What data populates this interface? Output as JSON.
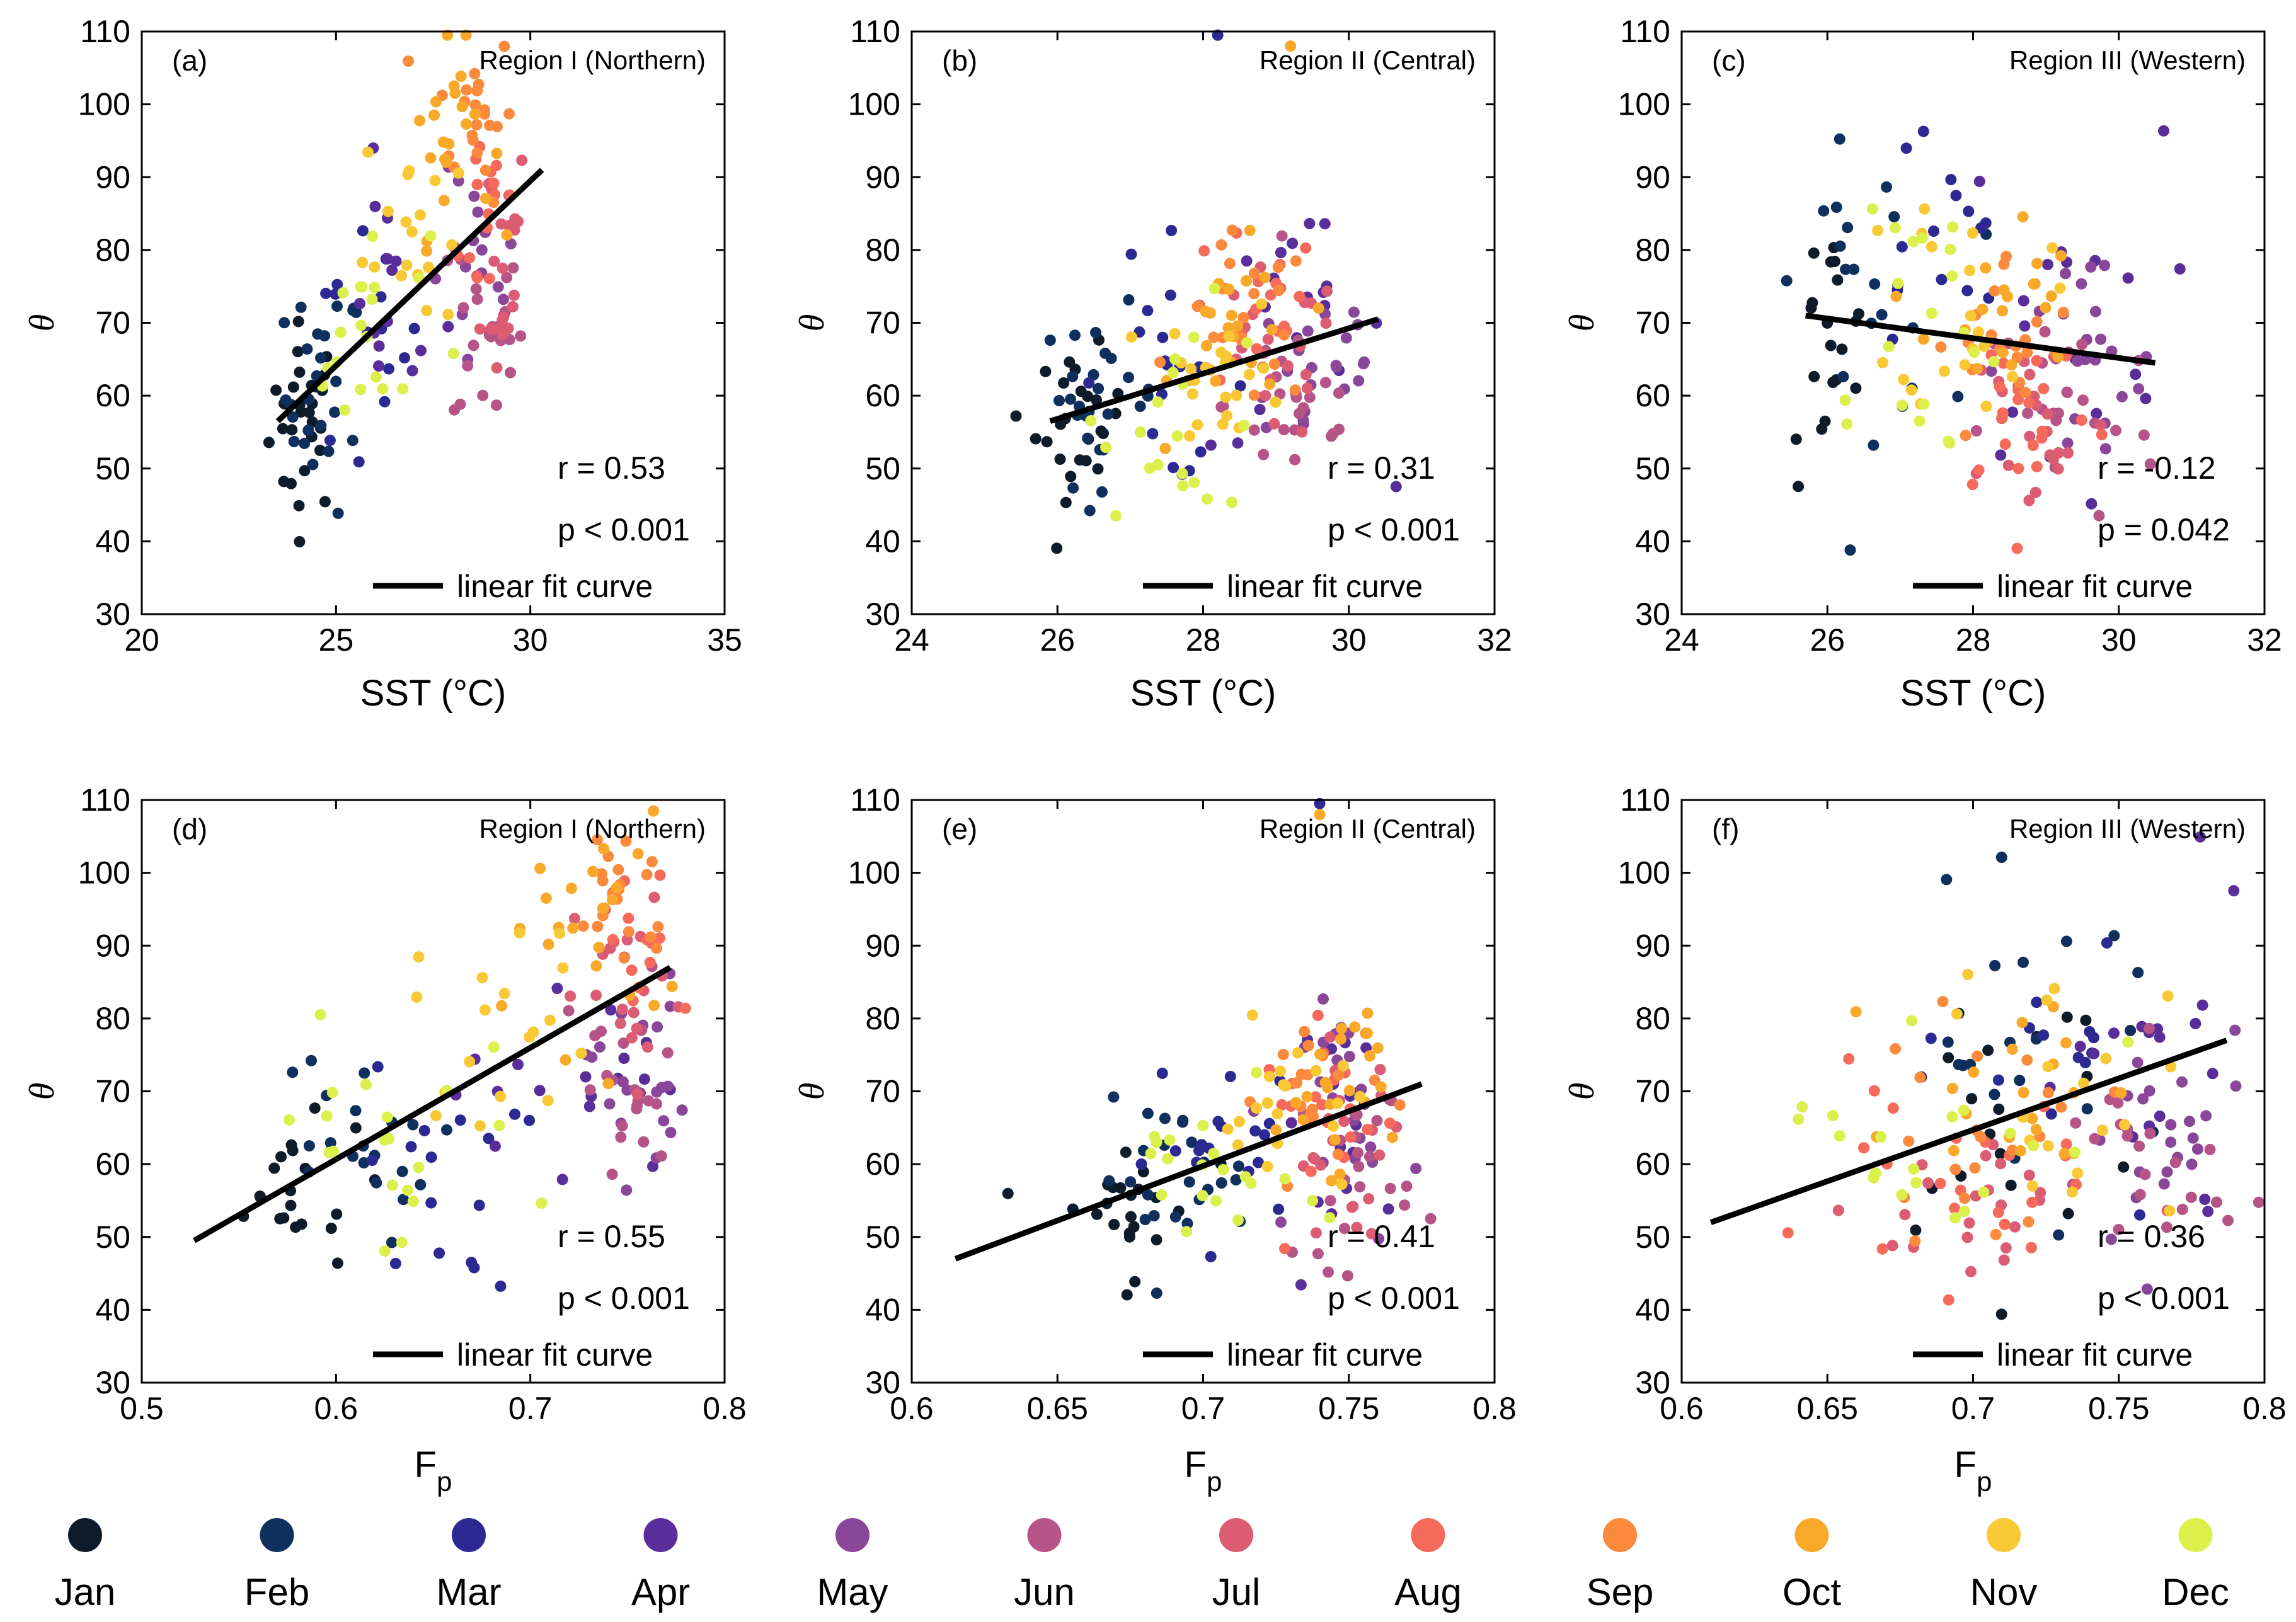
{
  "months": [
    {
      "label": "Jan",
      "color": "#0d1b2a"
    },
    {
      "label": "Feb",
      "color": "#0f2f5e"
    },
    {
      "label": "Mar",
      "color": "#2c2a92"
    },
    {
      "label": "Apr",
      "color": "#5a2e9a"
    },
    {
      "label": "May",
      "color": "#8a4799"
    },
    {
      "label": "Jun",
      "color": "#b65487"
    },
    {
      "label": "Jul",
      "color": "#dc5c73"
    },
    {
      "label": "Aug",
      "color": "#f66a5b"
    },
    {
      "label": "Sep",
      "color": "#fb8a3c"
    },
    {
      "label": "Oct",
      "color": "#f9a92a"
    },
    {
      "label": "Nov",
      "color": "#f9c935"
    },
    {
      "label": "Dec",
      "color": "#dbf04a"
    }
  ],
  "fit_label": "linear fit curve",
  "chart_data": [
    {
      "id": "a",
      "type": "scatter",
      "panel_label": "(a)",
      "title": "Region I (Northern)",
      "xlabel": "SST (°C)",
      "ylabel": "θ",
      "xlim": [
        20,
        35
      ],
      "ylim": [
        30,
        110
      ],
      "xticks": [
        "20",
        "25",
        "30",
        "35"
      ],
      "yticks": [
        "30",
        "40",
        "50",
        "60",
        "70",
        "80",
        "90",
        "100",
        "110"
      ],
      "r": "r = 0.53",
      "p": "p < 0.001",
      "fit": [
        [
          23.5,
          56.5
        ],
        [
          30.3,
          91
        ]
      ],
      "clusters": [
        {
          "m": 0,
          "n": 30,
          "cx": 24.2,
          "cy": 57,
          "sx": 0.45,
          "sy": 6.5
        },
        {
          "m": 1,
          "n": 26,
          "cx": 24.7,
          "cy": 60,
          "sx": 0.5,
          "sy": 8
        },
        {
          "m": 2,
          "n": 14,
          "cx": 25.6,
          "cy": 66,
          "sx": 0.8,
          "sy": 10
        },
        {
          "m": 3,
          "n": 14,
          "cx": 26.4,
          "cy": 74,
          "sx": 0.7,
          "sy": 8
        },
        {
          "m": 4,
          "n": 18,
          "cx": 28.6,
          "cy": 74,
          "sx": 0.6,
          "sy": 8
        },
        {
          "m": 5,
          "n": 22,
          "cx": 28.9,
          "cy": 70,
          "sx": 0.45,
          "sy": 8
        },
        {
          "m": 6,
          "n": 22,
          "cx": 29.1,
          "cy": 79,
          "sx": 0.45,
          "sy": 9
        },
        {
          "m": 7,
          "n": 14,
          "cx": 29.0,
          "cy": 86,
          "sx": 0.4,
          "sy": 8
        },
        {
          "m": 8,
          "n": 22,
          "cx": 28.6,
          "cy": 99,
          "sx": 0.5,
          "sy": 6
        },
        {
          "m": 9,
          "n": 22,
          "cx": 27.9,
          "cy": 96,
          "sx": 0.55,
          "sy": 7
        },
        {
          "m": 10,
          "n": 18,
          "cx": 26.9,
          "cy": 84,
          "sx": 0.6,
          "sy": 8
        },
        {
          "m": 11,
          "n": 20,
          "cx": 25.8,
          "cy": 68,
          "sx": 0.8,
          "sy": 8
        }
      ]
    },
    {
      "id": "b",
      "type": "scatter",
      "panel_label": "(b)",
      "title": "Region II (Central)",
      "xlabel": "SST (°C)",
      "ylabel": "θ",
      "xlim": [
        24,
        32
      ],
      "ylim": [
        30,
        110
      ],
      "xticks": [
        "24",
        "26",
        "28",
        "30",
        "32"
      ],
      "yticks": [
        "30",
        "40",
        "50",
        "60",
        "70",
        "80",
        "90",
        "100",
        "110"
      ],
      "r": "r = 0.31",
      "p": "p < 0.001",
      "fit": [
        [
          25.9,
          56.5
        ],
        [
          30.4,
          70.5
        ]
      ],
      "clusters": [
        {
          "m": 0,
          "n": 26,
          "cx": 26.3,
          "cy": 56,
          "sx": 0.3,
          "sy": 5
        },
        {
          "m": 1,
          "n": 26,
          "cx": 26.6,
          "cy": 60,
          "sx": 0.4,
          "sy": 6
        },
        {
          "m": 2,
          "n": 18,
          "cx": 27.4,
          "cy": 64,
          "sx": 0.6,
          "sy": 8
        },
        {
          "m": 3,
          "n": 18,
          "cx": 29.3,
          "cy": 68,
          "sx": 0.6,
          "sy": 8
        },
        {
          "m": 4,
          "n": 22,
          "cx": 29.6,
          "cy": 64,
          "sx": 0.5,
          "sy": 7
        },
        {
          "m": 5,
          "n": 22,
          "cx": 29.3,
          "cy": 59,
          "sx": 0.5,
          "sy": 7
        },
        {
          "m": 6,
          "n": 22,
          "cx": 28.9,
          "cy": 65,
          "sx": 0.5,
          "sy": 6
        },
        {
          "m": 7,
          "n": 18,
          "cx": 28.7,
          "cy": 71,
          "sx": 0.5,
          "sy": 6
        },
        {
          "m": 8,
          "n": 20,
          "cx": 28.6,
          "cy": 70,
          "sx": 0.45,
          "sy": 6
        },
        {
          "m": 9,
          "n": 22,
          "cx": 28.5,
          "cy": 68,
          "sx": 0.45,
          "sy": 6
        },
        {
          "m": 10,
          "n": 22,
          "cx": 28.3,
          "cy": 63,
          "sx": 0.45,
          "sy": 5
        },
        {
          "m": 11,
          "n": 20,
          "cx": 27.8,
          "cy": 58,
          "sx": 0.6,
          "sy": 7
        }
      ],
      "extra": [
        {
          "m": 2,
          "x": 28.2,
          "y": 109.5
        },
        {
          "m": 9,
          "x": 29.2,
          "y": 108
        }
      ]
    },
    {
      "id": "c",
      "type": "scatter",
      "panel_label": "(c)",
      "title": "Region III (Western)",
      "xlabel": "SST (°C)",
      "ylabel": "θ",
      "xlim": [
        24,
        32
      ],
      "ylim": [
        30,
        110
      ],
      "xticks": [
        "24",
        "26",
        "28",
        "30",
        "32"
      ],
      "yticks": [
        "30",
        "40",
        "50",
        "60",
        "70",
        "80",
        "90",
        "100",
        "110"
      ],
      "r": "r = -0.12",
      "p": "p = 0.042",
      "fit": [
        [
          25.7,
          71
        ],
        [
          30.5,
          64.5
        ]
      ],
      "clusters": [
        {
          "m": 0,
          "n": 20,
          "cx": 26.0,
          "cy": 66,
          "sx": 0.3,
          "sy": 9
        },
        {
          "m": 1,
          "n": 22,
          "cx": 26.6,
          "cy": 75,
          "sx": 0.5,
          "sy": 9
        },
        {
          "m": 2,
          "n": 14,
          "cx": 27.4,
          "cy": 79,
          "sx": 0.6,
          "sy": 10
        },
        {
          "m": 3,
          "n": 18,
          "cx": 29.2,
          "cy": 72,
          "sx": 0.7,
          "sy": 12
        },
        {
          "m": 4,
          "n": 22,
          "cx": 29.5,
          "cy": 63,
          "sx": 0.6,
          "sy": 9
        },
        {
          "m": 5,
          "n": 22,
          "cx": 29.3,
          "cy": 58,
          "sx": 0.6,
          "sy": 8
        },
        {
          "m": 6,
          "n": 24,
          "cx": 28.9,
          "cy": 56,
          "sx": 0.5,
          "sy": 7
        },
        {
          "m": 7,
          "n": 22,
          "cx": 28.7,
          "cy": 59,
          "sx": 0.5,
          "sy": 7
        },
        {
          "m": 8,
          "n": 20,
          "cx": 28.5,
          "cy": 66,
          "sx": 0.5,
          "sy": 7
        },
        {
          "m": 9,
          "n": 20,
          "cx": 28.4,
          "cy": 72,
          "sx": 0.5,
          "sy": 7
        },
        {
          "m": 10,
          "n": 20,
          "cx": 28.0,
          "cy": 74,
          "sx": 0.5,
          "sy": 8
        },
        {
          "m": 11,
          "n": 20,
          "cx": 27.0,
          "cy": 70,
          "sx": 0.7,
          "sy": 12
        }
      ]
    },
    {
      "id": "d",
      "type": "scatter",
      "panel_label": "(d)",
      "title": "Region I (Northern)",
      "xlabel": "F",
      "xlabel_sub": "p",
      "ylabel": "θ",
      "xlim": [
        0.5,
        0.8
      ],
      "ylim": [
        30,
        110
      ],
      "xticks": [
        "0.5",
        "0.6",
        "0.7",
        "0.8"
      ],
      "yticks": [
        "30",
        "40",
        "50",
        "60",
        "70",
        "80",
        "90",
        "100",
        "110"
      ],
      "r": "r = 0.55",
      "p": "p < 0.001",
      "fit": [
        [
          0.527,
          49.5
        ],
        [
          0.772,
          87
        ]
      ],
      "clusters": [
        {
          "m": 0,
          "n": 20,
          "cx": 0.575,
          "cy": 56,
          "sx": 0.022,
          "sy": 5
        },
        {
          "m": 1,
          "n": 22,
          "cx": 0.605,
          "cy": 62,
          "sx": 0.022,
          "sy": 7
        },
        {
          "m": 2,
          "n": 16,
          "cx": 0.655,
          "cy": 58,
          "sx": 0.02,
          "sy": 8
        },
        {
          "m": 3,
          "n": 18,
          "cx": 0.72,
          "cy": 70,
          "sx": 0.03,
          "sy": 8
        },
        {
          "m": 4,
          "n": 22,
          "cx": 0.755,
          "cy": 72,
          "sx": 0.012,
          "sy": 7
        },
        {
          "m": 5,
          "n": 22,
          "cx": 0.75,
          "cy": 70,
          "sx": 0.015,
          "sy": 8
        },
        {
          "m": 6,
          "n": 22,
          "cx": 0.752,
          "cy": 82,
          "sx": 0.014,
          "sy": 8
        },
        {
          "m": 7,
          "n": 12,
          "cx": 0.757,
          "cy": 88,
          "sx": 0.01,
          "sy": 7
        },
        {
          "m": 8,
          "n": 22,
          "cx": 0.748,
          "cy": 98,
          "sx": 0.013,
          "sy": 6
        },
        {
          "m": 9,
          "n": 22,
          "cx": 0.73,
          "cy": 92,
          "sx": 0.02,
          "sy": 8
        },
        {
          "m": 10,
          "n": 18,
          "cx": 0.69,
          "cy": 80,
          "sx": 0.025,
          "sy": 7
        },
        {
          "m": 11,
          "n": 20,
          "cx": 0.62,
          "cy": 63,
          "sx": 0.04,
          "sy": 8
        }
      ]
    },
    {
      "id": "e",
      "type": "scatter",
      "panel_label": "(e)",
      "title": "Region II (Central)",
      "xlabel": "F",
      "xlabel_sub": "p",
      "ylabel": "θ",
      "xlim": [
        0.6,
        0.8
      ],
      "ylim": [
        30,
        110
      ],
      "xticks": [
        "0.6",
        "0.65",
        "0.7",
        "0.75",
        "0.8"
      ],
      "yticks": [
        "30",
        "40",
        "50",
        "60",
        "70",
        "80",
        "90",
        "100",
        "110"
      ],
      "r": "r = 0.41",
      "p": "p < 0.001",
      "fit": [
        [
          0.615,
          47
        ],
        [
          0.775,
          71
        ]
      ],
      "clusters": [
        {
          "m": 0,
          "n": 22,
          "cx": 0.672,
          "cy": 54,
          "sx": 0.013,
          "sy": 5
        },
        {
          "m": 1,
          "n": 24,
          "cx": 0.69,
          "cy": 58,
          "sx": 0.013,
          "sy": 5
        },
        {
          "m": 2,
          "n": 18,
          "cx": 0.71,
          "cy": 63,
          "sx": 0.014,
          "sy": 6
        },
        {
          "m": 3,
          "n": 18,
          "cx": 0.75,
          "cy": 66,
          "sx": 0.012,
          "sy": 8
        },
        {
          "m": 4,
          "n": 22,
          "cx": 0.755,
          "cy": 66,
          "sx": 0.01,
          "sy": 8
        },
        {
          "m": 5,
          "n": 22,
          "cx": 0.752,
          "cy": 60,
          "sx": 0.01,
          "sy": 7
        },
        {
          "m": 6,
          "n": 22,
          "cx": 0.748,
          "cy": 62,
          "sx": 0.011,
          "sy": 7
        },
        {
          "m": 7,
          "n": 18,
          "cx": 0.742,
          "cy": 66,
          "sx": 0.011,
          "sy": 6
        },
        {
          "m": 8,
          "n": 20,
          "cx": 0.74,
          "cy": 70,
          "sx": 0.01,
          "sy": 6
        },
        {
          "m": 9,
          "n": 22,
          "cx": 0.745,
          "cy": 72,
          "sx": 0.01,
          "sy": 6
        },
        {
          "m": 10,
          "n": 20,
          "cx": 0.73,
          "cy": 67,
          "sx": 0.012,
          "sy": 6
        },
        {
          "m": 11,
          "n": 20,
          "cx": 0.7,
          "cy": 57,
          "sx": 0.016,
          "sy": 6
        }
      ],
      "extra": [
        {
          "m": 2,
          "x": 0.74,
          "y": 109.5
        },
        {
          "m": 9,
          "x": 0.74,
          "y": 108
        }
      ]
    },
    {
      "id": "f",
      "type": "scatter",
      "panel_label": "(f)",
      "title": "Region III (Western)",
      "xlabel": "F",
      "xlabel_sub": "p",
      "ylabel": "θ",
      "xlim": [
        0.6,
        0.8
      ],
      "ylim": [
        30,
        110
      ],
      "xticks": [
        "0.6",
        "0.65",
        "0.7",
        "0.75",
        "0.8"
      ],
      "yticks": [
        "30",
        "40",
        "50",
        "60",
        "70",
        "80",
        "90",
        "100",
        "110"
      ],
      "r": "r = 0.36",
      "p": "p < 0.001",
      "fit": [
        [
          0.61,
          52
        ],
        [
          0.787,
          77
        ]
      ],
      "clusters": [
        {
          "m": 0,
          "n": 18,
          "cx": 0.71,
          "cy": 68,
          "sx": 0.025,
          "sy": 12
        },
        {
          "m": 1,
          "n": 20,
          "cx": 0.72,
          "cy": 75,
          "sx": 0.025,
          "sy": 10
        },
        {
          "m": 2,
          "n": 14,
          "cx": 0.735,
          "cy": 78,
          "sx": 0.02,
          "sy": 10
        },
        {
          "m": 3,
          "n": 18,
          "cx": 0.765,
          "cy": 70,
          "sx": 0.015,
          "sy": 12
        },
        {
          "m": 4,
          "n": 22,
          "cx": 0.765,
          "cy": 62,
          "sx": 0.015,
          "sy": 9
        },
        {
          "m": 5,
          "n": 22,
          "cx": 0.755,
          "cy": 58,
          "sx": 0.018,
          "sy": 8
        },
        {
          "m": 6,
          "n": 22,
          "cx": 0.71,
          "cy": 55,
          "sx": 0.025,
          "sy": 7
        },
        {
          "m": 7,
          "n": 22,
          "cx": 0.69,
          "cy": 57,
          "sx": 0.022,
          "sy": 7
        },
        {
          "m": 8,
          "n": 20,
          "cx": 0.7,
          "cy": 64,
          "sx": 0.022,
          "sy": 7
        },
        {
          "m": 9,
          "n": 20,
          "cx": 0.72,
          "cy": 72,
          "sx": 0.02,
          "sy": 7
        },
        {
          "m": 10,
          "n": 18,
          "cx": 0.73,
          "cy": 70,
          "sx": 0.02,
          "sy": 9
        },
        {
          "m": 11,
          "n": 20,
          "cx": 0.69,
          "cy": 66,
          "sx": 0.03,
          "sy": 9
        }
      ]
    }
  ]
}
